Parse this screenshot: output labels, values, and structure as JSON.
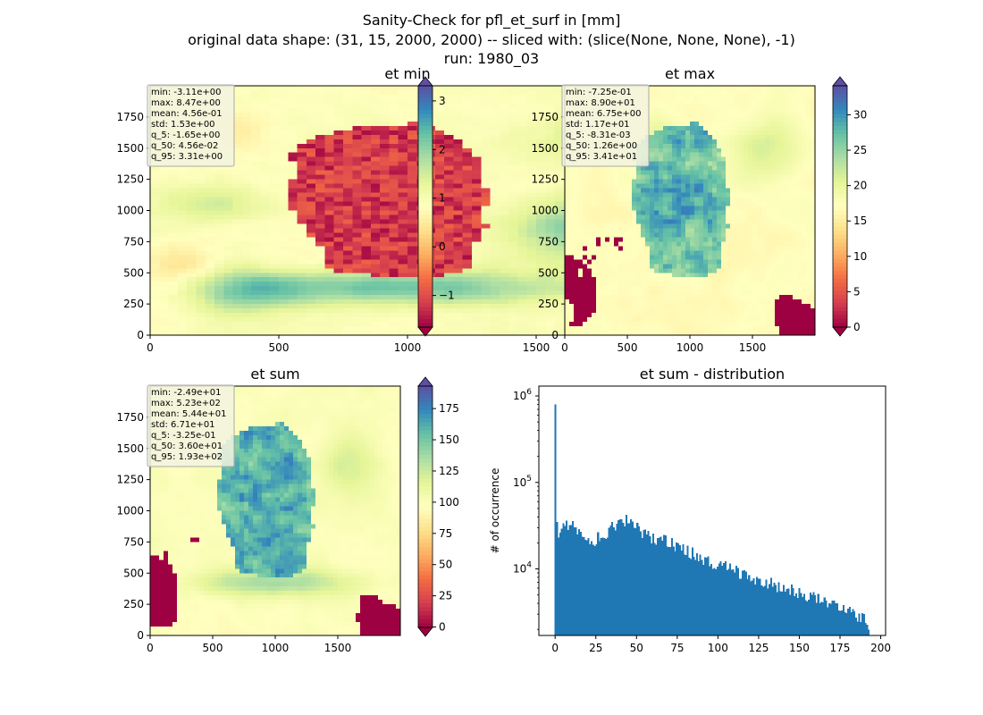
{
  "figure": {
    "title_lines": [
      "Sanity-Check for pfl_et_surf in [mm]",
      "original data shape: (31, 15, 2000, 2000) -- sliced with: (slice(None, None, None), -1)",
      "run: 1980_03"
    ]
  },
  "chart_data": [
    {
      "type": "heatmap",
      "title": "et min",
      "colormap": "Spectral",
      "xlim": [
        0,
        2000
      ],
      "ylim": [
        0,
        2000
      ],
      "xticks": [
        "0",
        "500",
        "1000",
        "1500"
      ],
      "yticks": [
        "0",
        "250",
        "500",
        "750",
        "1000",
        "1250",
        "1500",
        "1750"
      ],
      "colorbar": {
        "min": -1.65,
        "max": 3.31,
        "ticks": [
          -1,
          0,
          1,
          2,
          3
        ],
        "tick_labels": [
          "−1",
          "0",
          "1",
          "2",
          "3"
        ],
        "extend": "both"
      },
      "stats": [
        "min: -3.11e+00",
        "max: 8.47e+00",
        "mean: 4.56e-01",
        "std: 1.53e+00",
        "q_5: -1.65e+00",
        "q_50: 4.56e-02",
        "q_95: 3.31e+00"
      ]
    },
    {
      "type": "heatmap",
      "title": "et max",
      "colormap": "Spectral",
      "xlim": [
        0,
        2000
      ],
      "ylim": [
        0,
        2000
      ],
      "xticks": [
        "0",
        "500",
        "1000",
        "1500"
      ],
      "yticks": [
        "0",
        "250",
        "500",
        "750",
        "1000",
        "1250",
        "1500",
        "1750"
      ],
      "colorbar": {
        "min": 0,
        "max": 34.1,
        "ticks": [
          0,
          5,
          10,
          15,
          20,
          25,
          30
        ],
        "tick_labels": [
          "0",
          "5",
          "10",
          "15",
          "20",
          "25",
          "30"
        ],
        "extend": "both"
      },
      "stats": [
        "min: -7.25e-01",
        "max: 8.90e+01",
        "mean: 6.75e+00",
        "std: 1.17e+01",
        "q_5: -8.31e-03",
        "q_50: 1.26e+00",
        "q_95: 3.41e+01"
      ]
    },
    {
      "type": "heatmap",
      "title": "et sum",
      "colormap": "Spectral",
      "xlim": [
        0,
        2000
      ],
      "ylim": [
        0,
        2000
      ],
      "xticks": [
        "0",
        "500",
        "1000",
        "1500"
      ],
      "yticks": [
        "0",
        "250",
        "500",
        "750",
        "1000",
        "1250",
        "1500",
        "1750"
      ],
      "colorbar": {
        "min": -0.325,
        "max": 193,
        "ticks": [
          0,
          25,
          50,
          75,
          100,
          125,
          150,
          175
        ],
        "tick_labels": [
          "0",
          "25",
          "50",
          "75",
          "100",
          "125",
          "150",
          "175"
        ],
        "extend": "both"
      },
      "stats": [
        "min: -2.49e+01",
        "max: 5.23e+02",
        "mean: 5.44e+01",
        "std: 6.71e+01",
        "q_5: -3.25e-01",
        "q_50: 3.60e+01",
        "q_95: 1.93e+02"
      ]
    },
    {
      "type": "bar",
      "title": "et sum - distribution",
      "ylabel": "# of occurrence",
      "yscale": "log",
      "color": "#1f77b4",
      "xlim": [
        -10,
        203
      ],
      "ylim": [
        1700,
        1300000
      ],
      "xticks": [
        0,
        25,
        50,
        75,
        100,
        125,
        150,
        175,
        200
      ],
      "yticks_major": [
        10000,
        100000,
        1000000
      ],
      "yticks_major_labels": [
        {
          "base": "10",
          "exp": "4"
        },
        {
          "base": "10",
          "exp": "5"
        },
        {
          "base": "10",
          "exp": "6"
        }
      ],
      "bins": {
        "start": -0.3,
        "end": 193,
        "count": 200
      },
      "anchors": [
        [
          0,
          20000
        ],
        [
          1,
          25000
        ],
        [
          2,
          27000
        ],
        [
          4,
          30000
        ],
        [
          6,
          31000
        ],
        [
          8,
          32000
        ],
        [
          10,
          33000
        ],
        [
          12,
          31000
        ],
        [
          15,
          27000
        ],
        [
          18,
          24000
        ],
        [
          20,
          23000
        ],
        [
          25,
          22000
        ],
        [
          28,
          24000
        ],
        [
          30,
          26000
        ],
        [
          35,
          30000
        ],
        [
          40,
          33000
        ],
        [
          45,
          35000
        ],
        [
          50,
          31000
        ],
        [
          55,
          26000
        ],
        [
          60,
          23000
        ],
        [
          65,
          22000
        ],
        [
          70,
          20000
        ],
        [
          75,
          18000
        ],
        [
          80,
          16000
        ],
        [
          85,
          15000
        ],
        [
          90,
          13500
        ],
        [
          95,
          12500
        ],
        [
          100,
          11500
        ],
        [
          110,
          9500
        ],
        [
          120,
          8000
        ],
        [
          130,
          7000
        ],
        [
          140,
          6000
        ],
        [
          150,
          5200
        ],
        [
          160,
          4500
        ],
        [
          170,
          3900
        ],
        [
          180,
          3300
        ],
        [
          185,
          3000
        ],
        [
          190,
          2600
        ],
        [
          193,
          2300
        ]
      ],
      "spikes": [
        [
          0,
          800000
        ],
        [
          44,
          42000
        ],
        [
          1,
          35000
        ]
      ]
    }
  ]
}
